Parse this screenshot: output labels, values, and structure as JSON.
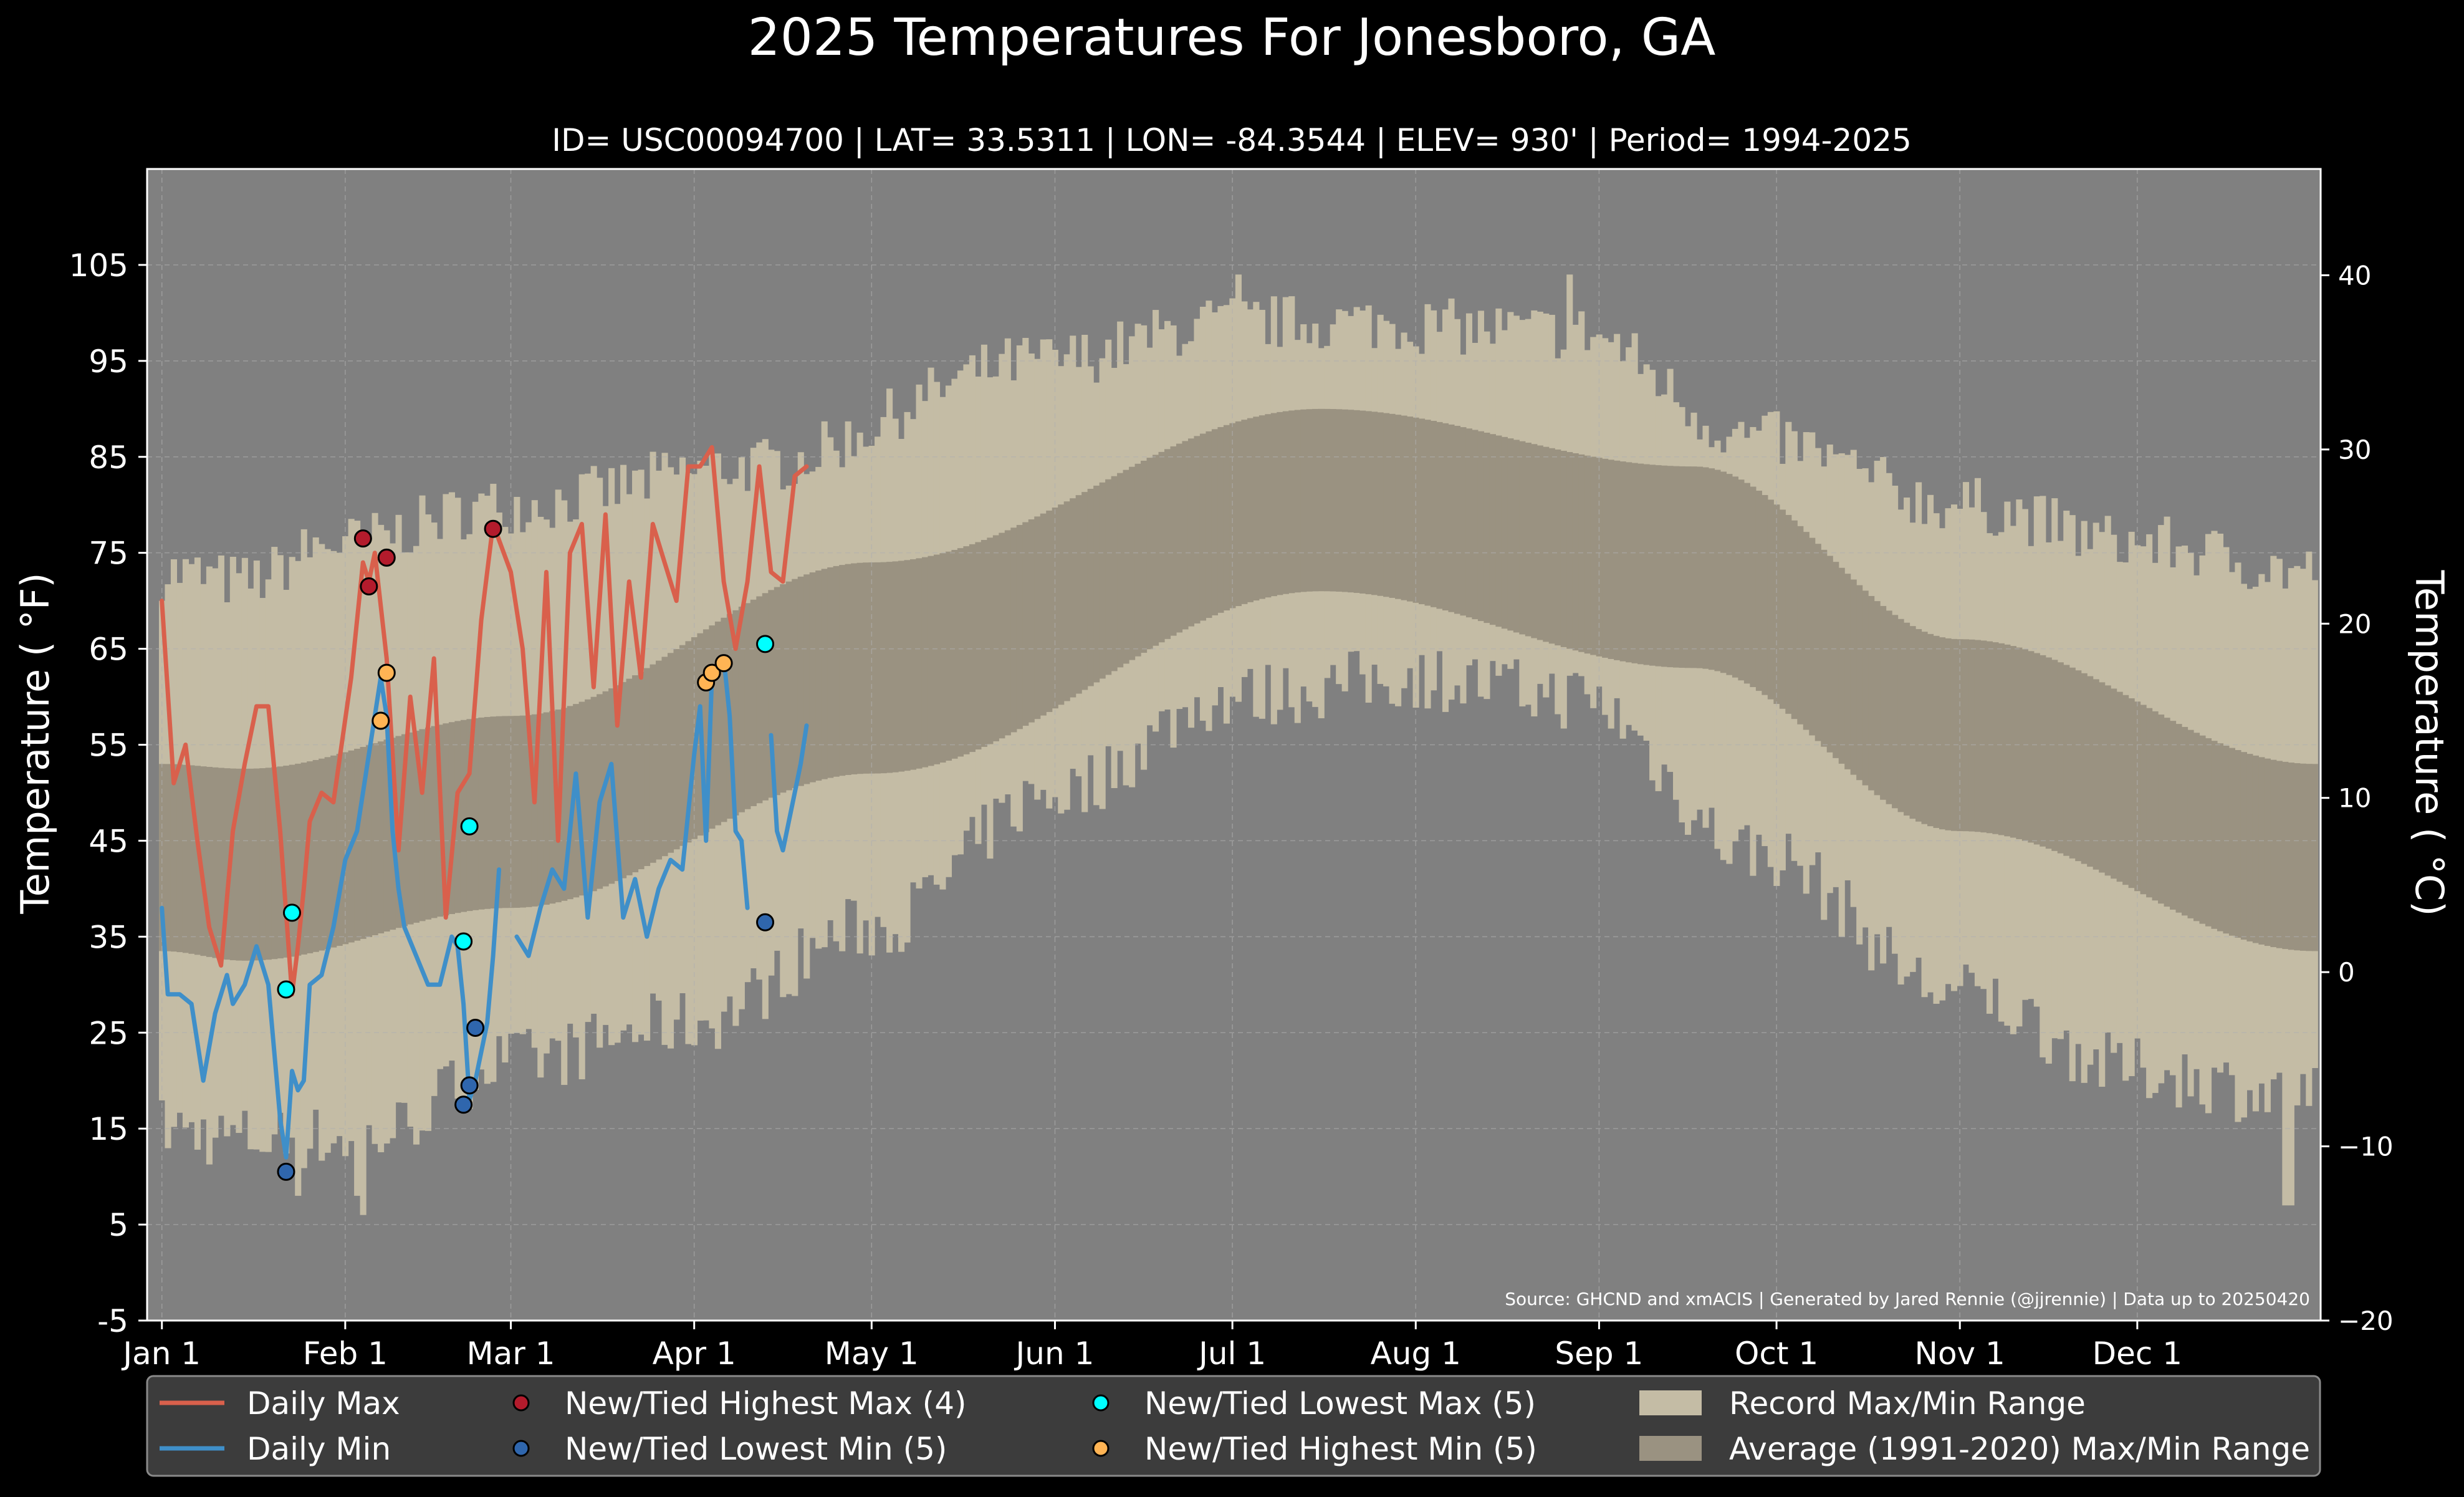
{
  "title": "2025 Temperatures For Jonesboro, GA",
  "subtitle": "ID= USC00094700 | LAT= 33.5311 | LON= -84.3544 | ELEV= 930' | Period= 1994-2025",
  "source_note": "Source: GHCND and xmACIS | Generated by Jared Rennie (@jjrennie) | Data up to 20250420",
  "colors": {
    "background": "#000000",
    "plot_background": "#808080",
    "record_range": "#c4bca5",
    "normal_range": "#9a9281",
    "daily_max": "#d9604c",
    "daily_min": "#3f8fc9",
    "highest_max": "#b31b2c",
    "lowest_min": "#2f66ad",
    "lowest_max": "#00ffff",
    "highest_min": "#ffb454",
    "legend_background": "#3c3c3c"
  },
  "chart_data": {
    "type": "line",
    "x_unit": "day of year 2025",
    "xlim": [
      -1.5,
      366
    ],
    "ylim": [
      -5,
      115
    ],
    "y2lim": [
      -20,
      46.1
    ],
    "ylabel": "Temperature ( °F)",
    "y2label": "Temperature ( °C)",
    "grid": true,
    "legend_position": "bottom",
    "x_ticks": [
      {
        "value": 1,
        "label": "Jan 1"
      },
      {
        "value": 32,
        "label": "Feb 1"
      },
      {
        "value": 60,
        "label": "Mar 1"
      },
      {
        "value": 91,
        "label": "Apr 1"
      },
      {
        "value": 121,
        "label": "May 1"
      },
      {
        "value": 152,
        "label": "Jun 1"
      },
      {
        "value": 182,
        "label": "Jul 1"
      },
      {
        "value": 213,
        "label": "Aug 1"
      },
      {
        "value": 244,
        "label": "Sep 1"
      },
      {
        "value": 274,
        "label": "Oct 1"
      },
      {
        "value": 305,
        "label": "Nov 1"
      },
      {
        "value": 335,
        "label": "Dec 1"
      }
    ],
    "y_ticks": [
      "-5",
      "5",
      "15",
      "25",
      "35",
      "45",
      "55",
      "65",
      "75",
      "85",
      "95",
      "105"
    ],
    "y2_ticks": [
      "−20",
      "−10",
      "0",
      "10",
      "20",
      "30",
      "40"
    ],
    "normal_range": {
      "max_anchors": {
        "days": [
          1,
          15,
          60,
          121,
          197,
          260,
          305,
          365
        ],
        "values": [
          53,
          52.5,
          58,
          74,
          90,
          84,
          66,
          53
        ]
      },
      "min_anchors": {
        "days": [
          1,
          15,
          60,
          121,
          197,
          260,
          305,
          365
        ],
        "values": [
          33.5,
          32.5,
          38,
          52,
          71,
          63,
          46,
          33.5
        ]
      }
    },
    "record_range": {
      "max_anchors": {
        "days": [
          1,
          15,
          30,
          60,
          100,
          150,
          182,
          200,
          240,
          270,
          305,
          335,
          365
        ],
        "values": [
          73,
          72,
          76,
          80,
          84,
          95,
          99,
          99,
          98,
          87,
          80,
          76,
          73
        ]
      },
      "min_anchors": {
        "days": [
          1,
          15,
          35,
          60,
          90,
          121,
          152,
          182,
          213,
          240,
          270,
          305,
          335,
          365
        ],
        "values": [
          15,
          14,
          14,
          22,
          26,
          36,
          50,
          60,
          62,
          60,
          44,
          29,
          21,
          18
        ]
      },
      "spikes_min": [
        {
          "day": 34,
          "value": 8
        },
        {
          "day": 35,
          "value": 6
        },
        {
          "day": 24,
          "value": 8
        },
        {
          "day": 360,
          "value": 7
        },
        {
          "day": 361,
          "value": 7
        }
      ],
      "spikes_max": [
        {
          "day": 183,
          "value": 104
        },
        {
          "day": 239,
          "value": 104
        }
      ]
    },
    "series": [
      {
        "name": "Daily Max",
        "x": [
          1,
          3,
          5,
          7,
          9,
          11,
          13,
          15,
          17,
          19,
          21,
          23,
          24,
          25,
          26,
          28,
          30,
          33,
          35,
          36,
          37,
          39,
          41,
          43,
          45,
          47,
          49,
          51,
          53,
          55,
          57,
          60,
          62,
          64,
          66,
          68,
          70,
          72,
          74,
          76,
          78,
          80,
          82,
          84,
          86,
          88,
          90,
          92,
          94,
          96,
          98,
          100,
          102,
          104,
          106,
          108,
          110
        ],
        "y": [
          70,
          51,
          55,
          45,
          36,
          32,
          46,
          53,
          59,
          59,
          46,
          29,
          34,
          40,
          47,
          50,
          49,
          62,
          74,
          72,
          75,
          64,
          44,
          60,
          50,
          64,
          37,
          50,
          52,
          68,
          78,
          73,
          65,
          49,
          73,
          45,
          75,
          78,
          61,
          79,
          57,
          72,
          62,
          78,
          74,
          70,
          84,
          84,
          86,
          72,
          65,
          72,
          84,
          73,
          72,
          83,
          84
        ]
      },
      {
        "name": "Daily Min",
        "x": [
          1,
          2,
          4,
          6,
          8,
          10,
          12,
          13,
          15,
          17,
          19,
          21,
          22,
          23,
          24,
          25,
          26,
          28,
          30,
          32,
          34,
          36,
          37,
          38,
          39,
          40,
          41,
          42,
          44,
          46,
          48,
          50,
          51,
          52,
          53,
          54,
          55,
          56,
          57,
          58
        ],
        "y": [
          38,
          29,
          29,
          28,
          20,
          27,
          31,
          28,
          30,
          34,
          30,
          16,
          12,
          21,
          19,
          20,
          30,
          31,
          36,
          43,
          46,
          54,
          58,
          62,
          58,
          46,
          40,
          36,
          33,
          30,
          30,
          35,
          34,
          28,
          18,
          20,
          23,
          26,
          33,
          42
        ]
      },
      {
        "name": "Daily Min",
        "x": [
          61,
          63,
          65,
          67,
          69,
          71,
          73,
          75,
          77,
          79,
          81,
          83,
          85,
          87,
          89,
          91,
          92,
          93,
          94,
          95,
          96,
          97,
          98,
          99,
          100
        ],
        "y": [
          35,
          33,
          38,
          42,
          40,
          52,
          37,
          49,
          53,
          37,
          41,
          35,
          40,
          43,
          42,
          54,
          59,
          45,
          62,
          63,
          64,
          58,
          46,
          45,
          38
        ]
      },
      {
        "name": "Daily Min",
        "x": [
          104,
          105,
          106,
          107,
          108,
          109,
          110
        ],
        "y": [
          56,
          46,
          44,
          47,
          50,
          53,
          57
        ]
      }
    ],
    "markers": [
      {
        "name": "New/Tied Highest Max (4)",
        "points": [
          {
            "x": 35,
            "y": 76.5
          },
          {
            "x": 36,
            "y": 71.5
          },
          {
            "x": 39,
            "y": 74.5
          },
          {
            "x": 57,
            "y": 77.5
          }
        ]
      },
      {
        "name": "New/Tied Lowest Min (5)",
        "points": [
          {
            "x": 22,
            "y": 10.5
          },
          {
            "x": 52,
            "y": 17.5
          },
          {
            "x": 53,
            "y": 19.5
          },
          {
            "x": 54,
            "y": 25.5
          },
          {
            "x": 103,
            "y": 36.5
          }
        ]
      },
      {
        "name": "New/Tied Lowest Max (5)",
        "points": [
          {
            "x": 22,
            "y": 29.5
          },
          {
            "x": 23,
            "y": 37.5
          },
          {
            "x": 52,
            "y": 34.5
          },
          {
            "x": 53,
            "y": 46.5
          },
          {
            "x": 103,
            "y": 65.5
          }
        ]
      },
      {
        "name": "New/Tied Highest Min (5)",
        "points": [
          {
            "x": 38,
            "y": 57.5
          },
          {
            "x": 39,
            "y": 62.5
          },
          {
            "x": 93,
            "y": 61.5
          },
          {
            "x": 94,
            "y": 62.5
          },
          {
            "x": 96,
            "y": 63.5
          }
        ]
      }
    ]
  },
  "legend": [
    {
      "label": "Daily Max",
      "type": "line",
      "color_key": "daily_max"
    },
    {
      "label": "Daily Min",
      "type": "line",
      "color_key": "daily_min"
    },
    {
      "label": "New/Tied Highest Max (4)",
      "type": "marker",
      "color_key": "highest_max"
    },
    {
      "label": "New/Tied Lowest Min (5)",
      "type": "marker",
      "color_key": "lowest_min"
    },
    {
      "label": "New/Tied Lowest Max (5)",
      "type": "marker",
      "color_key": "lowest_max"
    },
    {
      "label": "New/Tied Highest Min (5)",
      "type": "marker",
      "color_key": "highest_min"
    },
    {
      "label": "Record Max/Min Range",
      "type": "patch",
      "color_key": "record_range"
    },
    {
      "label": "Average (1991-2020) Max/Min Range",
      "type": "patch",
      "color_key": "normal_range"
    }
  ]
}
